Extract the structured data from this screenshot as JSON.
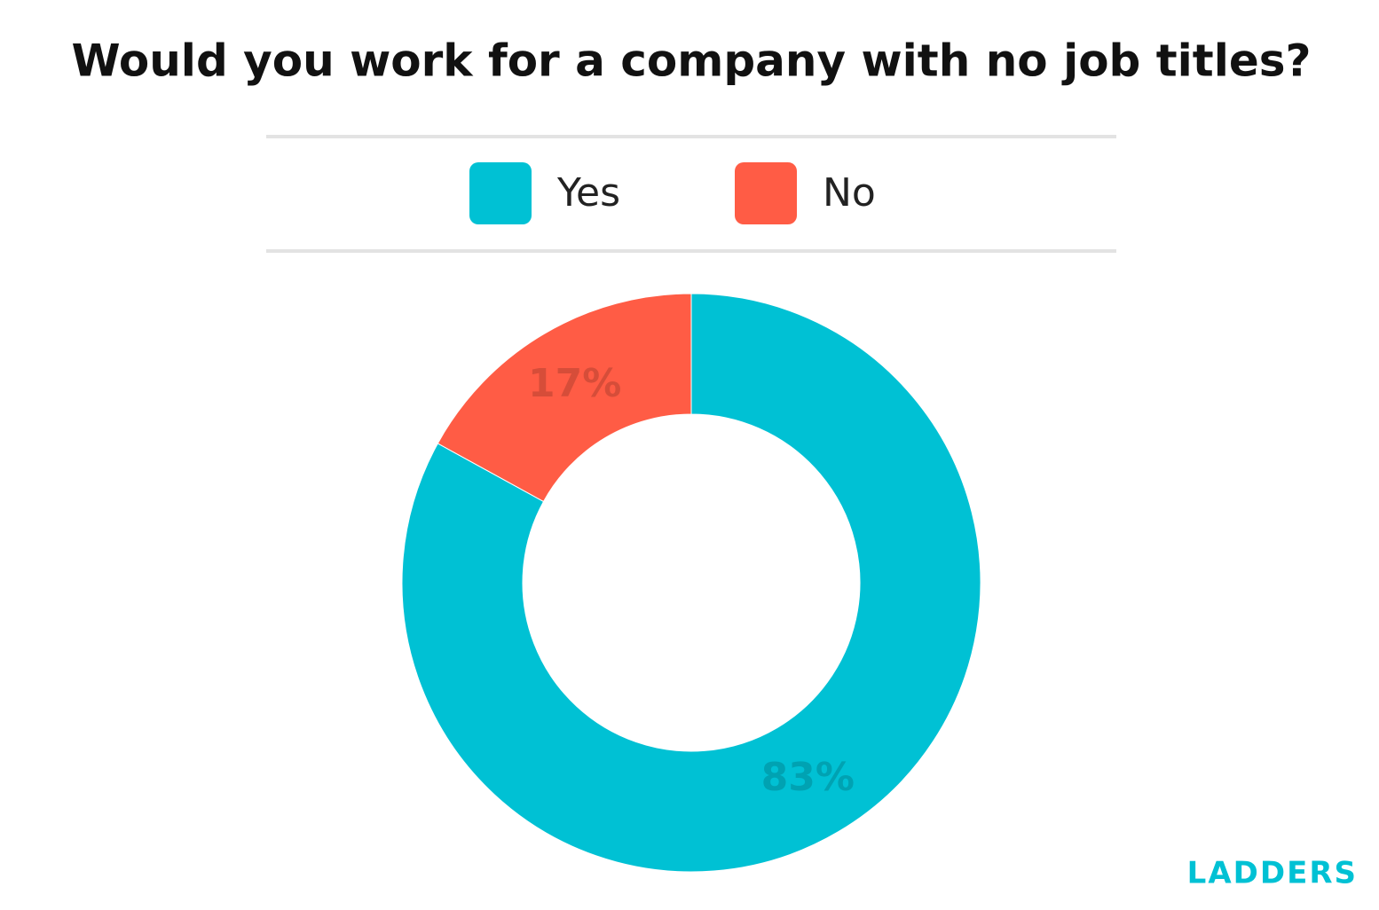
{
  "chart_data": {
    "type": "pie",
    "donut": true,
    "title": "Would you work for a company with no job titles?",
    "categories": [
      "Yes",
      "No"
    ],
    "values": [
      83,
      17
    ],
    "value_labels": [
      "83%",
      "17%"
    ],
    "colors": [
      "#00c1d4",
      "#ff5c45"
    ],
    "legend": "top",
    "source": "LADDERS"
  }
}
